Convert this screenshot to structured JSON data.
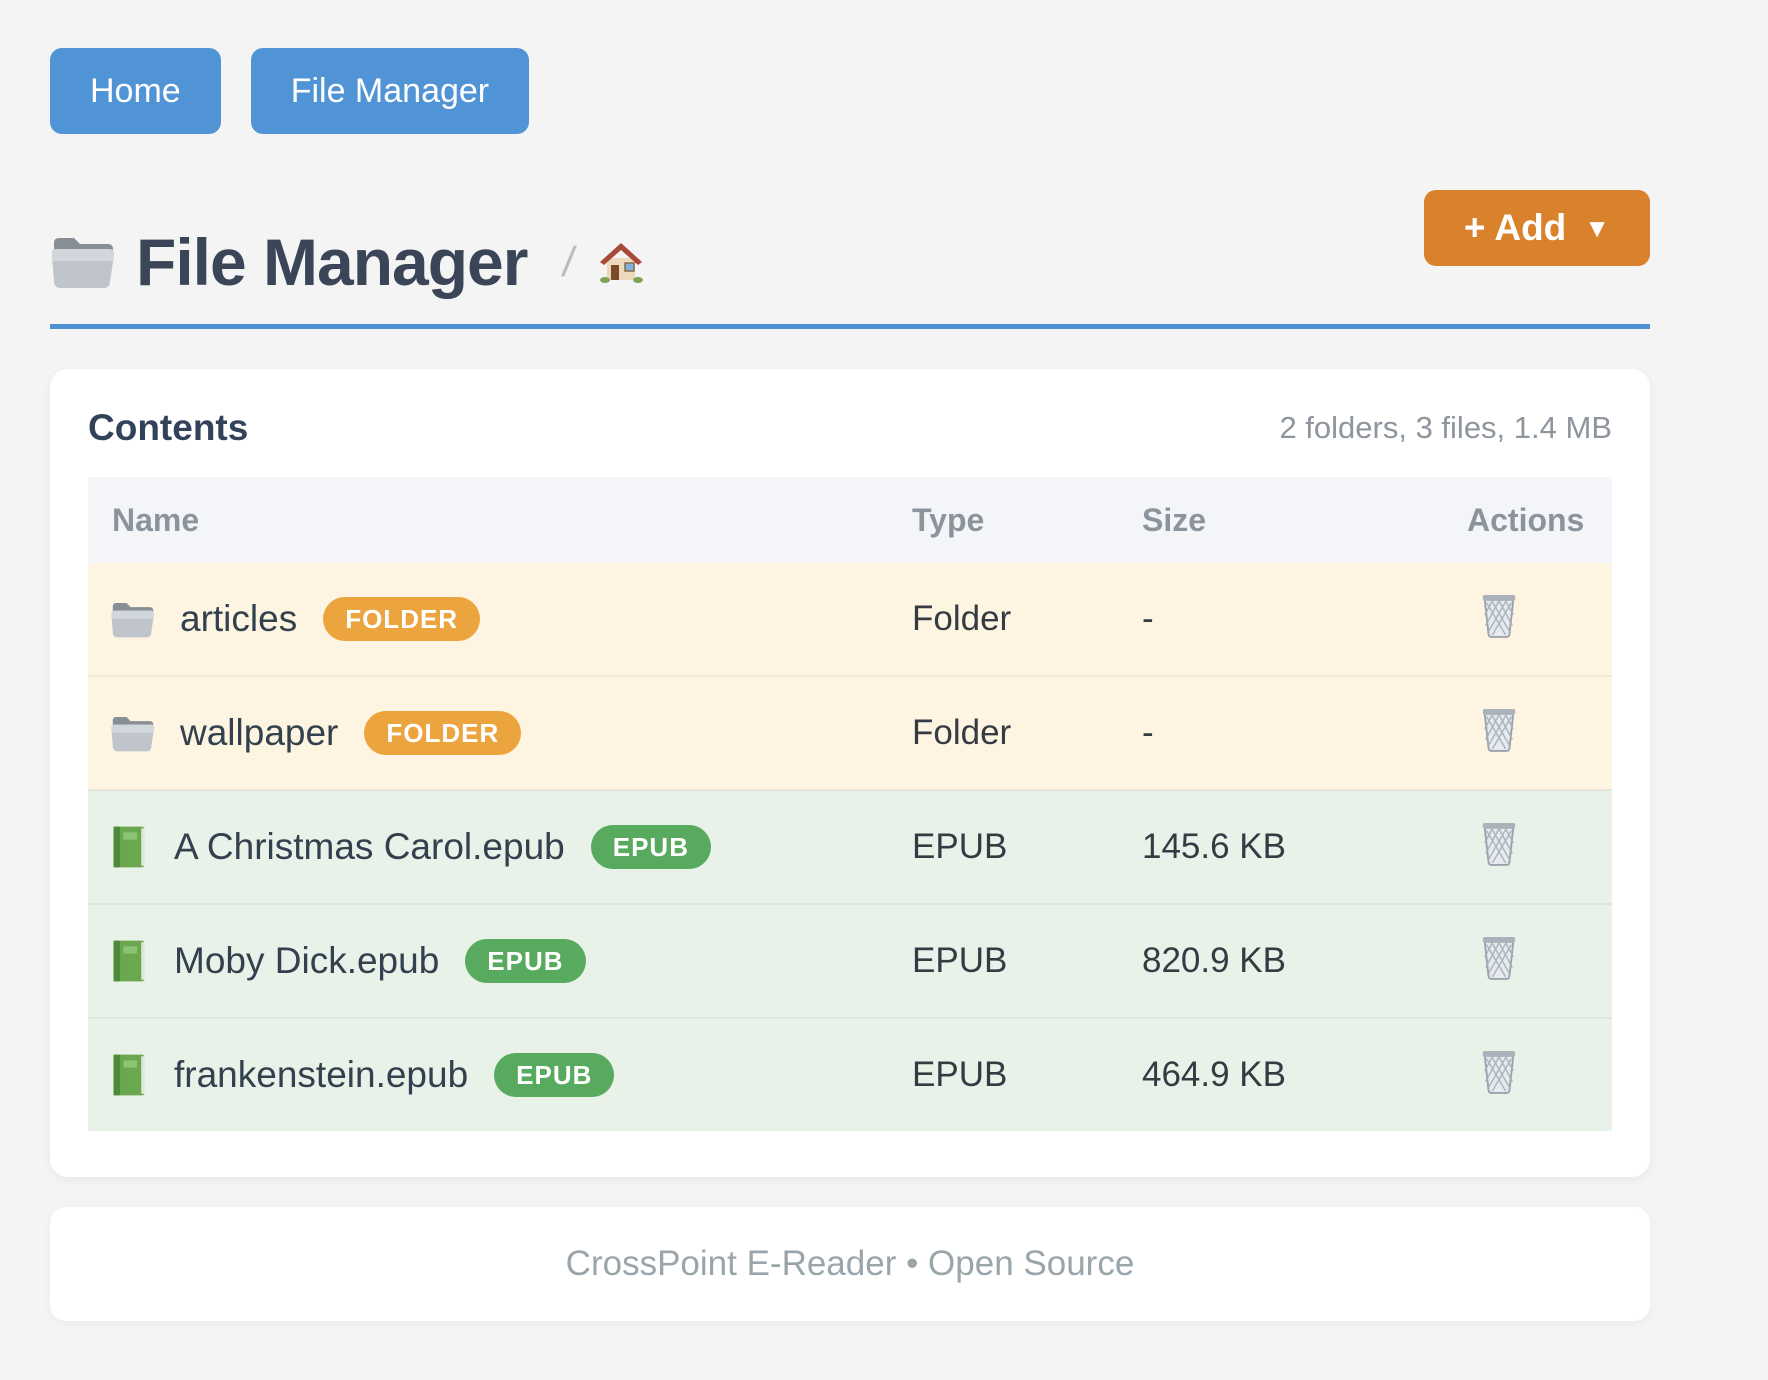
{
  "nav": {
    "buttons": [
      {
        "label": "Home"
      },
      {
        "label": "File Manager"
      }
    ]
  },
  "header": {
    "title": "File Manager",
    "title_icon": "folder-icon",
    "breadcrumb_separator": "/",
    "breadcrumb_home_icon": "home-icon",
    "add_button": {
      "label": "+ Add",
      "caret": "▼"
    }
  },
  "contents": {
    "heading": "Contents",
    "summary": "2 folders, 3 files, 1.4 MB",
    "table": {
      "columns": [
        "Name",
        "Type",
        "Size",
        "Actions"
      ],
      "action_icon": "trash-icon",
      "rows": [
        {
          "icon": "folder-icon",
          "name": "articles",
          "badge": "FOLDER",
          "badge_type": "folder",
          "type": "Folder",
          "size": "-"
        },
        {
          "icon": "folder-icon",
          "name": "wallpaper",
          "badge": "FOLDER",
          "badge_type": "folder",
          "type": "Folder",
          "size": "-"
        },
        {
          "icon": "book-icon",
          "name": "A Christmas Carol.epub",
          "badge": "EPUB",
          "badge_type": "epub",
          "type": "EPUB",
          "size": "145.6 KB"
        },
        {
          "icon": "book-icon",
          "name": "Moby Dick.epub",
          "badge": "EPUB",
          "badge_type": "epub",
          "type": "EPUB",
          "size": "820.9 KB"
        },
        {
          "icon": "book-icon",
          "name": "frankenstein.epub",
          "badge": "EPUB",
          "badge_type": "epub",
          "type": "EPUB",
          "size": "464.9 KB"
        }
      ]
    }
  },
  "footer": {
    "text": "CrossPoint E-Reader • Open Source"
  },
  "colors": {
    "accent_blue": "#5094d6",
    "add_orange": "#d9822b",
    "badge_folder_orange": "#eca43e",
    "badge_epub_green": "#58aa5e",
    "folder_row_bg": "#fdf5e2",
    "epub_row_bg": "#e9f2e9"
  }
}
